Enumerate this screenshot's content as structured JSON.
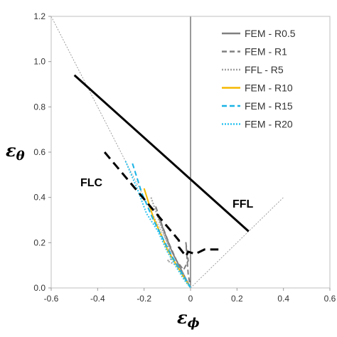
{
  "chart_data": {
    "type": "line",
    "xlabel": {
      "symbol": "ε",
      "subscript": "ϕ"
    },
    "ylabel": {
      "symbol": "ε",
      "subscript": "θ"
    },
    "xlim": [
      -0.6,
      0.6
    ],
    "ylim": [
      0.0,
      1.2
    ],
    "x_ticks": [
      "-0.6",
      "-0.4",
      "-0.2",
      "0",
      "0.2",
      "0.4",
      "0.6"
    ],
    "y_ticks": [
      "0.0",
      "0.2",
      "0.4",
      "0.6",
      "0.8",
      "1.0",
      "1.2"
    ],
    "grid": false,
    "legend_position": "top-right",
    "annotations": [
      "FLC",
      "FFL"
    ],
    "reference_lines": [
      {
        "style": "thin-dotted",
        "color": "#888888",
        "x": [
          -0.6,
          0.0
        ],
        "y": [
          1.2,
          0.0
        ]
      },
      {
        "style": "thin-dotted",
        "color": "#888888",
        "x": [
          0.0,
          0.4
        ],
        "y": [
          0.0,
          0.4
        ]
      },
      {
        "style": "thin-solid",
        "color": "#000000",
        "x": [
          0.0,
          0.0
        ],
        "y": [
          0.0,
          1.2
        ]
      }
    ],
    "curves": [
      {
        "role": "FFL",
        "style": "solid-bold",
        "color": "#000000",
        "x": [
          -0.5,
          0.25
        ],
        "y": [
          0.94,
          0.25
        ]
      },
      {
        "role": "FLC",
        "style": "dashed-bold",
        "color": "#000000",
        "x": [
          -0.37,
          -0.05,
          -0.05,
          -0.02,
          -0.01,
          0.02,
          0.06,
          0.12
        ],
        "y": [
          0.6,
          0.21,
          0.18,
          0.14,
          0.16,
          0.15,
          0.17,
          0.17
        ]
      }
    ],
    "series": [
      {
        "name": "FEM - R0.5",
        "color": "#808080",
        "style": "solid",
        "x": [
          -0.14,
          -0.11,
          -0.08,
          -0.05,
          -0.03,
          -0.01,
          0.0
        ],
        "y": [
          0.32,
          0.24,
          0.16,
          0.1,
          0.06,
          0.02,
          0.0
        ]
      },
      {
        "name": "FEM - R1",
        "color": "#808080",
        "style": "dashed",
        "x": [
          -0.15,
          -0.12,
          -0.09,
          -0.06,
          -0.03,
          -0.01,
          -0.02,
          -0.01,
          0.0
        ],
        "y": [
          0.36,
          0.27,
          0.19,
          0.12,
          0.08,
          0.12,
          0.2,
          0.06,
          0.0
        ]
      },
      {
        "name": "FFL - R5",
        "color": "#a0a0a0",
        "style": "dotted",
        "x": [
          -0.17,
          -0.13,
          -0.1,
          -0.08,
          -0.1,
          -0.06,
          -0.03,
          0.0
        ],
        "y": [
          0.4,
          0.28,
          0.2,
          0.13,
          0.12,
          0.1,
          0.06,
          0.0
        ]
      },
      {
        "name": "FEM - R10",
        "color": "#f5b800",
        "style": "solid",
        "x": [
          -0.2,
          -0.16,
          -0.12,
          -0.1,
          -0.06,
          -0.03,
          0.0
        ],
        "y": [
          0.44,
          0.31,
          0.22,
          0.17,
          0.1,
          0.05,
          0.0
        ]
      },
      {
        "name": "FEM - R15",
        "color": "#1ab3e6",
        "style": "dashed",
        "x": [
          -0.25,
          -0.21,
          -0.16,
          -0.12,
          -0.08,
          -0.04,
          -0.01,
          0.0
        ],
        "y": [
          0.55,
          0.42,
          0.3,
          0.22,
          0.14,
          0.07,
          0.02,
          0.0
        ]
      },
      {
        "name": "FEM - R20",
        "color": "#2ec4f0",
        "style": "dotted",
        "x": [
          -0.28,
          -0.23,
          -0.19,
          -0.14,
          -0.1,
          -0.06,
          -0.03,
          0.0
        ],
        "y": [
          0.56,
          0.44,
          0.33,
          0.25,
          0.16,
          0.09,
          0.04,
          0.0
        ]
      }
    ]
  }
}
